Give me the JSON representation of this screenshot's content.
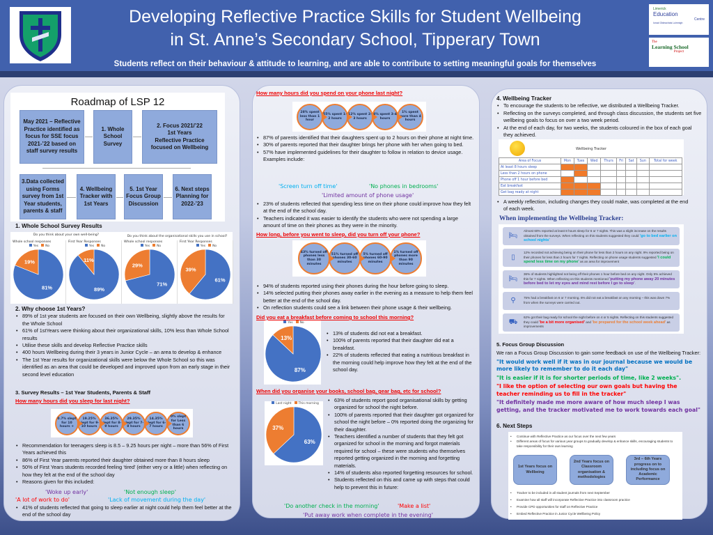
{
  "header": {
    "title_line1": "Developing Reflective Practice Skills for Student Wellbeing",
    "title_line2": "in St. Anne’s Secondary School, Tipperary Town",
    "subtitle": "Students reflect on their behaviour & attitude to learning, and are able to contribute to setting meaningful goals for themselves",
    "crest_text": "ST. ANNE'S TIPPERARY",
    "logo1": {
      "l1": "Limerick",
      "l2": "Education",
      "l3": "Centre",
      "l4": "Ionad Oideachais Luimnigh"
    },
    "logo2": {
      "l1": "The",
      "l2": "Learning School",
      "l3": "Project"
    }
  },
  "colors": {
    "header": "#4161ad",
    "yes": "#4472c4",
    "no": "#ed7d31",
    "question": "#ee0000",
    "purple": "#7030a0",
    "green": "#00b050",
    "red": "#ff0000",
    "cyan": "#00b0f0",
    "blue": "#0070c0"
  },
  "roadmap": {
    "title": "Roadmap of LSP 12",
    "boxes": [
      "May 2021 – Reflective Practice identified as focus for SSE focus 2021-’22 based on staff survey results",
      "1. Whole School Survey",
      "2. Focus 2021/’22\n1st Years\nReflective Practice focused on Wellbeing",
      "3.Data collected using Forms survey from 1st Year students, parents & staff",
      "4. Wellbeing Tracker with 1st Years",
      "5. 1st Year Focus Group Discussion",
      "6. Next steps\nPlanning for 2022-’23"
    ]
  },
  "section1": {
    "heading": "1.  Whole School Survey Results",
    "group1_title": "Do you think about your own well-being?",
    "group2_title": "Do you think about the organisational skills you use in school?",
    "legend_yes": "Yes",
    "legend_no": "No"
  },
  "chart_data": [
    {
      "type": "pie",
      "title": "Whole school responses",
      "categories": [
        "Yes",
        "No"
      ],
      "values": [
        81,
        19
      ],
      "labels": [
        "81%",
        "19%"
      ]
    },
    {
      "type": "pie",
      "title": "First Year Responses",
      "categories": [
        "Yes",
        "No"
      ],
      "values": [
        89,
        11
      ],
      "labels": [
        "89%",
        "11%"
      ]
    },
    {
      "type": "pie",
      "title": "Whole school responses",
      "categories": [
        "Yes",
        "No"
      ],
      "values": [
        71,
        29
      ],
      "labels": [
        "71%",
        "29%"
      ]
    },
    {
      "type": "pie",
      "title": "First Year Responses",
      "categories": [
        "Yes",
        "No"
      ],
      "values": [
        61,
        39
      ],
      "labels": [
        "61%",
        "39%"
      ]
    },
    {
      "type": "pie",
      "title": "",
      "categories": [
        "Yes",
        "No"
      ],
      "values": [
        87,
        13
      ],
      "labels": [
        "87%",
        "13%"
      ]
    },
    {
      "type": "pie",
      "title": "",
      "categories": [
        "Last night",
        "This morning"
      ],
      "values": [
        63,
        37
      ],
      "labels": [
        "63%",
        "37%"
      ]
    }
  ],
  "section2": {
    "heading": "2. Why choose 1st Years?",
    "bullets": [
      "89% of 1st year students are focused on their own Wellbeing, slightly above the results for the Whole School",
      "61% of 1stYears were thinking about their organizational skills, 10% less than Whole School results",
      "Utilise these skills and develop Reflective Practice skills",
      "400 hours Wellbeing during their 3 years in Junior Cycle – an area to develop & enhance",
      "The 1st Year results for organizational skills were below the Whole School so this was identified as an area that could be developed and improved upon from an early stage in their second level education"
    ]
  },
  "section3": {
    "heading": "3. Survey Results – 1st Year Students, Parents & Staff",
    "sleep_q": "How many hours did you sleep for last night?",
    "sleep_circles": [
      "0.7% slept for 10 hours +",
      "19.25% slept for 9-10 hours",
      "36.35% slept for 8-9 hours",
      "29.35% slept for 7-8 hours",
      "14.35% slept for 6-7 hours",
      "0% slept for Less than 6 hours"
    ],
    "sleep_bullets": [
      "Recommendation for teenagers sleep is 8.5 – 9.25 hours per night – more than 56% of First Years achieved this",
      "86% of First Year parents reported their daughter obtained more than 8 hours sleep",
      "50% of First Years students recorded feeling ‘tired’ (either very or a little) when reflecting on how they felt at the end of the school day",
      "Reasons given for this included:"
    ],
    "sleep_quotes": [
      "'Woke up early'",
      "'Not enough sleep'",
      "'A lot of work to do'",
      "'Lack of movement during the day'"
    ],
    "sleep_last": "41% of students reflected that going to sleep earlier at night could help them feel better at the end  of the school day",
    "phone_q": "How many hours did you spend on your phone last night?",
    "phone_circles": [
      "28% spent less than 1 hour",
      "55% spent 1-2 hours",
      "12% spent 2-3 hours",
      "4% spent 3-4 hours",
      "1% spent more than 4 hours"
    ],
    "phone_bullets": [
      "87% of parents identified that their daughters spent up to 2 hours on their phone at night time.",
      "30% of parents reported that their daughter brings her phone with her when going to bed.",
      "57% have implemented guidelines for their daughter to follow in relation to device usage. Examples include:"
    ],
    "phone_quotes": [
      "'Screen turn off time'",
      "'No phones in bedrooms'",
      "'Limited amount of phone usage'"
    ],
    "phone_bullets2": [
      "23% of students reflected that spending less time on their phone could improve how they felt at the end of the school day.",
      "Teachers indicated it was easier to identify the students who were not spending a large amount of time on their phones as they were in the minority."
    ],
    "off_q": "How long, before you went to sleep, did you turn off your phone?",
    "off_circles": [
      "43% turned off phones less than 30 minutes",
      "51% turned off phones 30-60 minutes",
      "5% turned off phones 60-90 minutes",
      "1% turned off phones more than 90 minutes"
    ],
    "off_bullets": [
      "94% of students reported using their phones during the hour before going to sleep.",
      "14% selected putting their phones away earlier in the evening as a measure to help them feel better at the end of the school day.",
      "On reflection students could see a link between their phone usage & their wellbeing."
    ],
    "bf_q": "Did you eat a breakfast before coming to school this morning?",
    "bf_bullets": [
      "13% of students did not eat a breakfast.",
      "100% of parents reported that their daughter did eat a breakfast.",
      "22% of students reflected that eating a nutritious breakfast in the morning could help improve how they felt at the end of the school day."
    ],
    "org_q": "When did you organise your books, school bag, gear bag, etc for school?",
    "org_bullets": [
      "63% of students report good organisational skills by getting organized for school the night before.",
      "100% of parents reported that their daughter got organized for school the night before   – 0% reported doing the organizing for their daughter.",
      "Teachers identified a number of students that they felt got organized for school in the morning and forgot materials required for school – these were students who themselves reported getting organized in the morning and forgetting materials.",
      "14% of students also reported forgetting resources for school.",
      "Students reflected on this and came up with steps that could help to prevent this in future:"
    ],
    "org_quotes": [
      "'Do another check in the morning'",
      "'Make a list'",
      "'Put away work when complete in the evening'"
    ]
  },
  "section4": {
    "heading": "4. Wellbeing Tracker",
    "bullets": [
      "To encourage the students to be reflective, we distributed a Wellbeing Tracker.",
      "Reflecting on the surveys completed, and through class discussion, the students set five wellbeing goals to focus on over a two week period.",
      "At the end of each day, for two weeks, the students coloured in the box of each goal they achieved."
    ],
    "tracker": {
      "title": "Wellbeing Tracker",
      "columns": [
        "Area of Focus",
        "Mon",
        "Tues",
        "Wed",
        "Thurs",
        "Fri",
        "Sat",
        "Sun",
        "Total for week"
      ],
      "rows": [
        {
          "area": "At least 8 hours sleep",
          "marked": [
            1,
            1,
            0,
            0,
            0,
            0,
            0
          ]
        },
        {
          "area": "Less than 2 hours on phone",
          "marked": [
            0,
            1,
            0,
            0,
            0,
            0,
            0
          ]
        },
        {
          "area": "Phone off 1 hour before bed",
          "marked": [
            1,
            0,
            0,
            0,
            0,
            0,
            0
          ]
        },
        {
          "area": "Eat breakfast",
          "marked": [
            1,
            1,
            1,
            0,
            0,
            0,
            0
          ]
        },
        {
          "area": "Get bag ready at night",
          "marked": [
            1,
            1,
            1,
            0,
            0,
            0,
            0
          ]
        }
      ]
    },
    "weekly": "A weekly reflection, including changes they could make, was completed at the end of each week.",
    "impl_heading": "When implementing the Wellbeing Tracker:",
    "impl": [
      {
        "icon": "bed-icon",
        "text": "Almost 60% reported at least 8 hours sleep for 6 or 7 nights. This was a slight increase on the results obtained from the surveys. When reflecting on this students suggested they could ",
        "quote": "'go to bed earlier on school nights'",
        "after": "",
        "color": "#00b0f0"
      },
      {
        "icon": "phone-icon",
        "text": "12% recorded not achieving being on their phone for less than 2 hours on any night. 9% reported being on their phones for less than 2 hours for 7 nights. Reflecting on phone usage students suggested ",
        "quote": "'I could spend less time on my phone'",
        "after": " as an area for improvement",
        "color": "#00b050"
      },
      {
        "icon": "bed-icon",
        "text": "36% of students highlighted not being off their phones 1 hour before bed on any night.  Only 5% achieved this for 7 nights. When reflecting on this students mentioned ",
        "quote": "'putting my phone away 20 minutes before bed to let my eyes and mind rest before I go to sleep'",
        "after": ".",
        "color": "#7030a0"
      },
      {
        "icon": "spoon-icon",
        "text": "75% had a breakfast on 6 or 7 morning. 6% did not eat a breakfast on any morning – this was down 7% from when the surveys were carried out.",
        "quote": "",
        "after": "",
        "color": "#333333"
      },
      {
        "icon": "bag-icon",
        "text": "62% got their bag ready for school the night before on 4 or 5 nights.  Reflecting on this students suggested they could ",
        "quote": "'be a bit more organised'",
        "after": " and ",
        "quote2": "'be prepared for the school week ahead'",
        "after2": " as improvements",
        "color": "#ff0000",
        "color2": "#ed7d31"
      }
    ]
  },
  "section5": {
    "heading": "5. Focus Group Discussion",
    "intro": "We ran a Focus Group Discussion to gain some feedback on use of the Wellbeing Tracker:",
    "quotes": [
      "\"It would work well if it was in our journal because we would be more likely to remember to do it each day\"",
      "\"It is easier if it is for shorter periods of time, like 2 weeks\".",
      "\"I like the option of selecting our own goals but having the teacher reminding us to fill in the tracker\"",
      "\"It definitely made me more aware of how much sleep I was getting, and the tracker motivated me to work towards each goal\""
    ]
  },
  "section6": {
    "heading": "6. Next Steps",
    "bullets_top": [
      "Continue with Reflective Practice as our focus over the next few years",
      "Different areas of focus for various year groups to gradually develop & enhance skills, encouraging students to take responsibility for their own learning"
    ],
    "boxes": [
      "1st Years focus on Wellbeing",
      "2nd Years focus on Classroom organisation & methodologies",
      "3rd – 6th Years progress on to including focus on Academic Performance"
    ],
    "bullets_bottom": [
      "Tracker to be included in all student journals from next September",
      "Examine how all staff will incorporate Reflective Practice into classroom practice",
      "Provide CPD opportunities for staff on Reflective Practice",
      "Embed Reflective Practice in Junior Cycle Wellbeing Policy"
    ]
  }
}
